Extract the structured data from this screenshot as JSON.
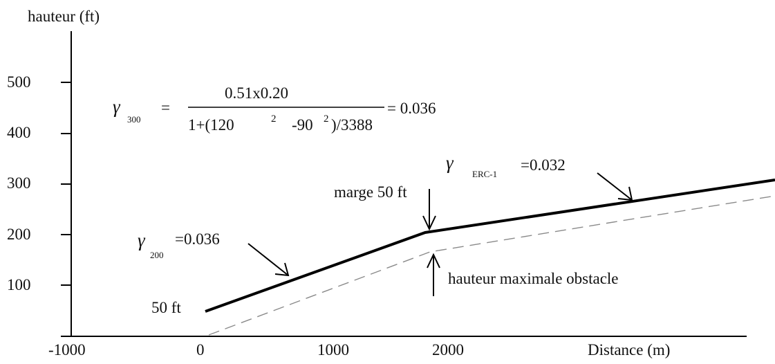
{
  "axes": {
    "y_title": "hauteur (ft)",
    "x_title": "Distance (m)",
    "y_ticks": [
      "500",
      "400",
      "300",
      "200",
      "100"
    ],
    "x_ticks": [
      "-1000",
      "0",
      "1000",
      "2000"
    ]
  },
  "formula": {
    "gamma": "γ",
    "subscript": "300",
    "equals": "=",
    "numerator": "0.51x0.20",
    "den_part1": "1+(120",
    "den_exp1": "2",
    "den_part2": "-90",
    "den_exp2": "2",
    "den_part3": ")/3388",
    "result": "= 0.036"
  },
  "labels": {
    "gamma_erc": {
      "gamma": "γ",
      "subscript": "ERC-1",
      "value": "=0.032"
    },
    "gamma_200": {
      "gamma": "γ",
      "subscript": "200",
      "value": "=0.036"
    },
    "marge": "marge 50 ft",
    "obstacle": "hauteur maximale obstacle",
    "start_height": "50 ft"
  }
}
